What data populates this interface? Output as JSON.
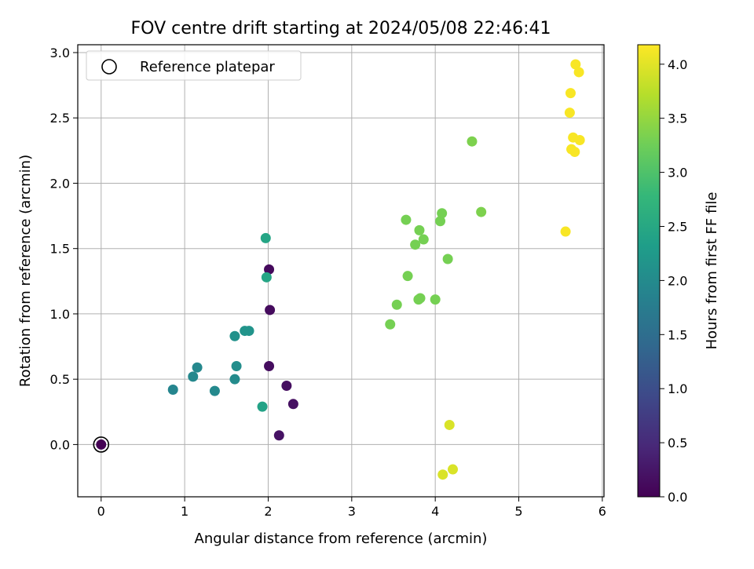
{
  "chart_data": {
    "type": "scatter",
    "title": "FOV centre drift starting at 2024/05/08 22:46:41",
    "xlabel": "Angular distance from reference (arcmin)",
    "ylabel": "Rotation from reference (arcmin)",
    "xlim": [
      -0.28,
      6.02
    ],
    "ylim": [
      -0.4,
      3.06
    ],
    "xticks": [
      0,
      1,
      2,
      3,
      4,
      5,
      6
    ],
    "yticks": [
      0.0,
      0.5,
      1.0,
      1.5,
      2.0,
      2.5,
      3.0
    ],
    "grid": true,
    "legend": {
      "placement": "top-left",
      "entries": [
        "Reference platepar"
      ]
    },
    "reference_point": {
      "name": "Reference platepar",
      "x": 0,
      "y": 0
    },
    "colorbar": {
      "label": "Hours from first FF file",
      "range": [
        0.0,
        4.18
      ],
      "ticks": [
        0.0,
        0.5,
        1.0,
        1.5,
        2.0,
        2.5,
        3.0,
        3.5,
        4.0
      ],
      "colormap": [
        "#440154",
        "#482878",
        "#3e4989",
        "#31688e",
        "#26828e",
        "#1f9e89",
        "#35b779",
        "#6ece58",
        "#b5de2b",
        "#fde725"
      ]
    },
    "points": [
      {
        "x": 0.0,
        "y": 0.0,
        "c": 0.0
      },
      {
        "x": 2.01,
        "y": 1.34,
        "c": 0.1
      },
      {
        "x": 2.02,
        "y": 1.03,
        "c": 0.12
      },
      {
        "x": 2.01,
        "y": 0.6,
        "c": 0.14
      },
      {
        "x": 2.22,
        "y": 0.45,
        "c": 0.16
      },
      {
        "x": 2.3,
        "y": 0.31,
        "c": 0.18
      },
      {
        "x": 2.13,
        "y": 0.07,
        "c": 0.2
      },
      {
        "x": 0.86,
        "y": 0.42,
        "c": 1.9
      },
      {
        "x": 1.1,
        "y": 0.52,
        "c": 1.95
      },
      {
        "x": 1.15,
        "y": 0.59,
        "c": 1.95
      },
      {
        "x": 1.36,
        "y": 0.41,
        "c": 1.98
      },
      {
        "x": 1.6,
        "y": 0.5,
        "c": 2.0
      },
      {
        "x": 1.62,
        "y": 0.6,
        "c": 2.05
      },
      {
        "x": 1.6,
        "y": 0.83,
        "c": 2.1
      },
      {
        "x": 1.72,
        "y": 0.87,
        "c": 2.15
      },
      {
        "x": 1.77,
        "y": 0.87,
        "c": 2.15
      },
      {
        "x": 1.93,
        "y": 0.29,
        "c": 2.4
      },
      {
        "x": 1.98,
        "y": 1.28,
        "c": 2.45
      },
      {
        "x": 1.97,
        "y": 1.58,
        "c": 2.45
      },
      {
        "x": 3.46,
        "y": 0.92,
        "c": 3.3
      },
      {
        "x": 3.54,
        "y": 1.07,
        "c": 3.3
      },
      {
        "x": 3.65,
        "y": 1.72,
        "c": 3.3
      },
      {
        "x": 3.67,
        "y": 1.29,
        "c": 3.3
      },
      {
        "x": 3.76,
        "y": 1.53,
        "c": 3.3
      },
      {
        "x": 3.8,
        "y": 1.11,
        "c": 3.3
      },
      {
        "x": 3.82,
        "y": 1.12,
        "c": 3.3
      },
      {
        "x": 3.81,
        "y": 1.64,
        "c": 3.3
      },
      {
        "x": 3.86,
        "y": 1.57,
        "c": 3.3
      },
      {
        "x": 4.0,
        "y": 1.11,
        "c": 3.3
      },
      {
        "x": 4.06,
        "y": 1.71,
        "c": 3.3
      },
      {
        "x": 4.08,
        "y": 1.77,
        "c": 3.3
      },
      {
        "x": 4.15,
        "y": 1.42,
        "c": 3.3
      },
      {
        "x": 4.44,
        "y": 2.32,
        "c": 3.35
      },
      {
        "x": 4.55,
        "y": 1.78,
        "c": 3.35
      },
      {
        "x": 4.09,
        "y": -0.23,
        "c": 3.95
      },
      {
        "x": 4.17,
        "y": 0.15,
        "c": 3.95
      },
      {
        "x": 4.21,
        "y": -0.19,
        "c": 3.95
      },
      {
        "x": 5.56,
        "y": 1.63,
        "c": 4.15
      },
      {
        "x": 5.61,
        "y": 2.54,
        "c": 4.15
      },
      {
        "x": 5.62,
        "y": 2.69,
        "c": 4.15
      },
      {
        "x": 5.63,
        "y": 2.26,
        "c": 4.15
      },
      {
        "x": 5.65,
        "y": 2.35,
        "c": 4.15
      },
      {
        "x": 5.67,
        "y": 2.24,
        "c": 4.15
      },
      {
        "x": 5.68,
        "y": 2.91,
        "c": 4.15
      },
      {
        "x": 5.72,
        "y": 2.85,
        "c": 4.15
      },
      {
        "x": 5.73,
        "y": 2.33,
        "c": 4.15
      }
    ]
  }
}
